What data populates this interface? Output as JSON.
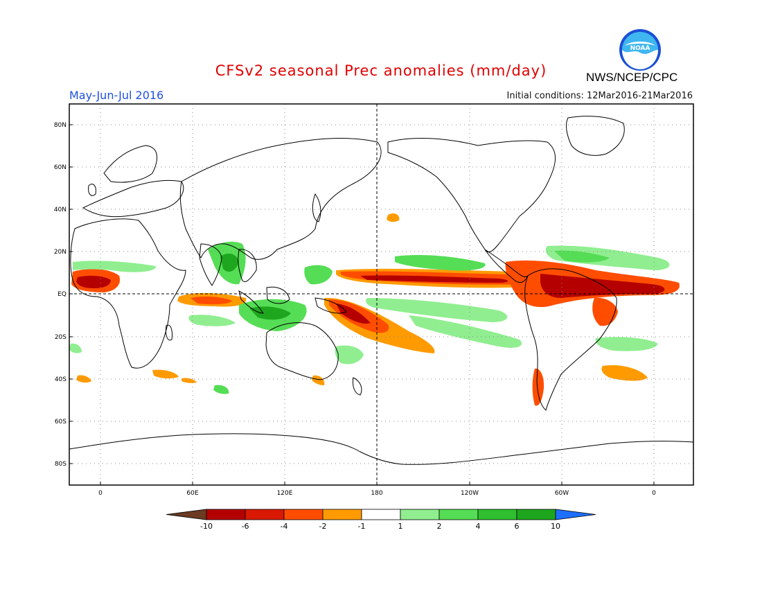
{
  "title": "CFSv2 seasonal Prec anomalies (mm/day)",
  "season": "May-Jun-Jul 2016",
  "initial_conditions": "Initial conditions: 12Mar2016-21Mar2016",
  "agency": "NWS/NCEP/CPC",
  "logo_text": "NOAA",
  "lat_labels": [
    "80N",
    "60N",
    "40N",
    "20N",
    "EQ",
    "20S",
    "40S",
    "60S",
    "80S"
  ],
  "lon_labels": [
    "0",
    "60E",
    "120E",
    "180",
    "120W",
    "60W",
    "0"
  ],
  "colorbar": {
    "labels": [
      "-10",
      "-6",
      "-4",
      "-2",
      "-1",
      "1",
      "2",
      "4",
      "6",
      "10"
    ],
    "colors": [
      "#6b3b22",
      "#b50000",
      "#d91a00",
      "#ff4d00",
      "#ff9b00",
      "#ffffff",
      "#90ee90",
      "#55dd55",
      "#2fbf2f",
      "#1fa61f",
      "#1f6fff"
    ]
  },
  "colors": {
    "dry_strong": "#b50000",
    "dry": "#ff4d00",
    "dry_weak": "#ff9b00",
    "wet_weak": "#90ee90",
    "wet": "#55dd55",
    "wet_strong": "#1fa61f"
  }
}
